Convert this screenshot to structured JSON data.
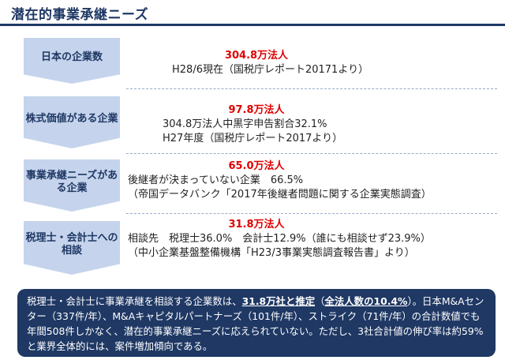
{
  "title": "潜在的事業承継ニーズ",
  "rows": [
    {
      "label": "日本の企業数",
      "amount": "304.8万法人",
      "lines": [
        "H28/6現在（国税庁レポート20171より）"
      ]
    },
    {
      "label": "株式価値がある企業",
      "amount": "97.8万法人",
      "lines": [
        "304.8万法人中黒字申告割合32.1%",
        "H27年度（国税庁レポート2017より）"
      ]
    },
    {
      "label": "事業承継ニーズがある企業",
      "amount": "65.0万法人",
      "lines": [
        "後継者が決まっていない企業　66.5%",
        "（帝国データバンク「2017年後継者問題に関する企業実態調査）"
      ]
    },
    {
      "label": "税理士・会計士への相談",
      "amount": "31.8万法人",
      "lines": [
        "相談先　税理士36.0%　会計士12.9%（誰にも相談せず23.9%）",
        "（中小企業基盤整備機構「H23/3事業実態調査報告書」より）"
      ]
    }
  ],
  "summary": {
    "part1": "税理士・会計士に事業承継を相談する企業数は、",
    "part2": "31.8万社と推定",
    "part3": "（",
    "part4": "全法人数の10.4%",
    "part5": "）。日本M&Aセンター（337件/年）、M&Aキャピタルパートナーズ（101件/年）、ストライク（71件/年）の合計数値でも年間508件しかなく、潜在的事業承継ニーズに応えられていない。ただし、3社合計値の伸び率は約59%と業界全体的には、案件増加傾向である。"
  },
  "colors": {
    "navy": "#1f3864",
    "chevron": "#c5d4ec",
    "red": "#e00000"
  }
}
